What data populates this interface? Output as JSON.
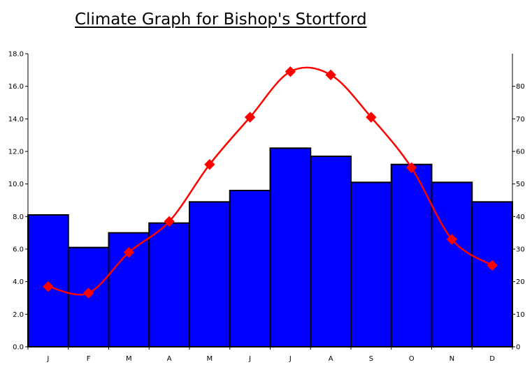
{
  "chart_data": {
    "type": "bar",
    "title": "Climate Graph for Bishop's Stortford",
    "categories": [
      "J",
      "F",
      "M",
      "A",
      "M",
      "J",
      "J",
      "A",
      "S",
      "O",
      "N",
      "D"
    ],
    "series": [
      {
        "chart": "bar",
        "axis": "right",
        "color": "#0000ff",
        "values": [
          40.5,
          30.5,
          35,
          38,
          44.5,
          48,
          61,
          58.5,
          50.5,
          56,
          50.5,
          44.5
        ]
      },
      {
        "chart": "line",
        "axis": "left",
        "color": "#ff0000",
        "marker": "diamond",
        "smooth": true,
        "values": [
          3.7,
          3.3,
          5.8,
          7.7,
          11.2,
          14.1,
          16.9,
          16.7,
          14.1,
          11.0,
          6.6,
          5.0
        ]
      }
    ],
    "y_left": {
      "lim": [
        0,
        18
      ],
      "ticks": [
        "0.0",
        "2.0",
        "4.0",
        "6.0",
        "8.0",
        "10.0",
        "12.0",
        "14.0",
        "16.0",
        "18.0"
      ]
    },
    "y_right": {
      "lim": [
        0,
        90
      ],
      "ticks": [
        "0",
        "10",
        "20",
        "30",
        "40",
        "50",
        "60",
        "70",
        "80"
      ]
    },
    "grid": false,
    "legend": "none"
  }
}
